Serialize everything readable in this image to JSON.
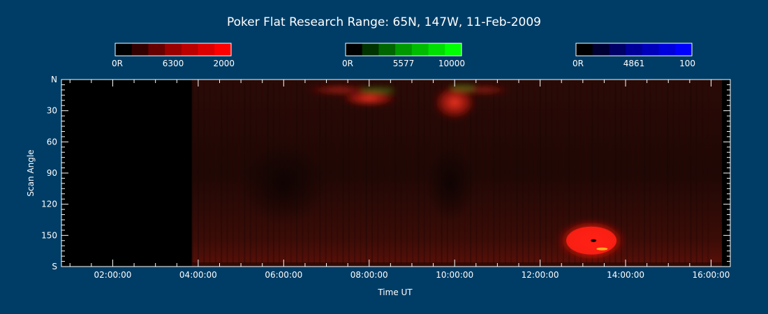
{
  "chart_data": {
    "type": "heatmap",
    "title": "Poker Flat Research Range: 65N, 147W, 11-Feb-2009",
    "xlabel": "Time UT",
    "ylabel": "Scan Angle",
    "x_ticks": [
      "02:00:00",
      "04:00:00",
      "06:00:00",
      "08:00:00",
      "10:00:00",
      "12:00:00",
      "14:00:00",
      "16:00:00"
    ],
    "x_tick_hours": [
      2,
      4,
      6,
      8,
      10,
      12,
      14,
      16
    ],
    "xlim_hours": [
      0.8,
      16.45
    ],
    "y_ticks": [
      "N",
      "30",
      "60",
      "90",
      "120",
      "150",
      "S"
    ],
    "y_tick_values": [
      0,
      30,
      60,
      90,
      120,
      150,
      180
    ],
    "ylim": [
      0,
      180
    ],
    "data_start_hour": 3.85,
    "colorbars": [
      {
        "id": "red",
        "name": "6300",
        "min_label": "0R",
        "max_label": "2000",
        "colors": [
          "#000000",
          "#330000",
          "#660000",
          "#990000",
          "#bb0000",
          "#dd0000",
          "#ff0000"
        ]
      },
      {
        "id": "green",
        "name": "5577",
        "min_label": "0R",
        "max_label": "10000",
        "colors": [
          "#000000",
          "#003300",
          "#006600",
          "#009900",
          "#00bb00",
          "#00dd00",
          "#00ff00"
        ]
      },
      {
        "id": "blue",
        "name": "4861",
        "min_label": "0R",
        "max_label": "100",
        "colors": [
          "#000000",
          "#000033",
          "#000066",
          "#000099",
          "#0000bb",
          "#0000dd",
          "#0000ff"
        ]
      }
    ],
    "features": [
      {
        "time_hours": 8.0,
        "scan_angle": 18,
        "intensity_630": 0.7
      },
      {
        "time_hours": 10.0,
        "scan_angle": 20,
        "intensity_630": 0.65
      },
      {
        "time_hours": 13.2,
        "scan_angle": 155,
        "intensity_630": 1.0
      }
    ]
  }
}
